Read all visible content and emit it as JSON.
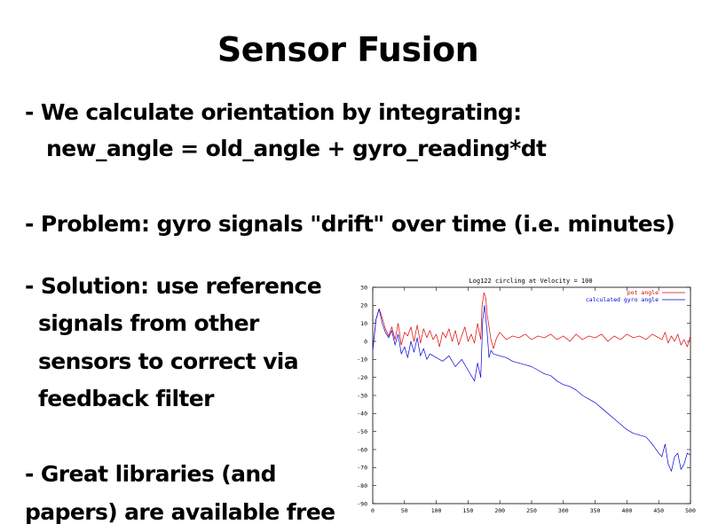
{
  "slide": {
    "title": "Sensor Fusion",
    "bullet1_line1": "- We calculate orientation by integrating:",
    "bullet1_line2": "new_angle = old_angle + gyro_reading*dt",
    "bullet2": "- Problem: gyro signals \"drift\" over time (i.e. minutes)",
    "bullet3_lines": [
      "- Solution: use reference",
      "signals from other",
      "sensors to correct via",
      "feedback filter"
    ],
    "bullet4_lines": [
      "- Great libraries (and",
      "papers) are available free"
    ]
  },
  "chart_data": {
    "type": "line",
    "title": "Log122  circling at Velocity = 100",
    "xlabel": "",
    "ylabel": "",
    "xlim": [
      0,
      500
    ],
    "ylim": [
      -90,
      30
    ],
    "x_ticks": [
      0,
      50,
      100,
      150,
      200,
      250,
      300,
      350,
      400,
      450,
      500
    ],
    "y_ticks": [
      30,
      20,
      10,
      0,
      -10,
      -20,
      -30,
      -40,
      -50,
      -60,
      -70,
      -80,
      -90
    ],
    "grid": false,
    "legend_position": "top-right",
    "series": [
      {
        "name": "pot angle",
        "color": "#e00000",
        "x": [
          0,
          5,
          10,
          15,
          20,
          25,
          30,
          35,
          40,
          45,
          50,
          55,
          60,
          65,
          70,
          75,
          80,
          85,
          90,
          95,
          100,
          105,
          110,
          115,
          120,
          125,
          130,
          135,
          140,
          145,
          150,
          155,
          160,
          165,
          170,
          172,
          175,
          178,
          180,
          183,
          186,
          190,
          195,
          200,
          210,
          220,
          230,
          240,
          250,
          260,
          270,
          280,
          290,
          300,
          310,
          320,
          330,
          340,
          350,
          360,
          370,
          380,
          390,
          400,
          410,
          420,
          430,
          440,
          450,
          455,
          460,
          465,
          470,
          475,
          480,
          485,
          490,
          495,
          500
        ],
        "values": [
          -5,
          12,
          18,
          13,
          7,
          3,
          8,
          1,
          10,
          -2,
          5,
          3,
          8,
          0,
          9,
          -1,
          7,
          2,
          6,
          1,
          4,
          -3,
          5,
          2,
          7,
          0,
          6,
          -2,
          3,
          8,
          0,
          4,
          -1,
          10,
          1,
          20,
          27,
          24,
          15,
          8,
          1,
          -4,
          2,
          5,
          1,
          3,
          2,
          4,
          1,
          3,
          2,
          4,
          1,
          3,
          0,
          4,
          1,
          3,
          2,
          4,
          0,
          3,
          1,
          4,
          2,
          3,
          1,
          4,
          2,
          1,
          5,
          -1,
          3,
          0,
          4,
          -2,
          1,
          -3,
          3
        ]
      },
      {
        "name": "calculated gyro angle",
        "color": "#0000dd",
        "x": [
          0,
          5,
          10,
          15,
          20,
          25,
          30,
          35,
          40,
          45,
          50,
          55,
          60,
          65,
          70,
          75,
          80,
          85,
          90,
          100,
          110,
          120,
          130,
          140,
          150,
          160,
          165,
          170,
          173,
          176,
          180,
          183,
          186,
          190,
          200,
          210,
          220,
          230,
          240,
          250,
          260,
          270,
          280,
          290,
          300,
          310,
          320,
          330,
          340,
          350,
          360,
          370,
          380,
          390,
          400,
          410,
          420,
          430,
          440,
          450,
          455,
          460,
          465,
          470,
          475,
          480,
          485,
          490,
          495,
          500
        ],
        "values": [
          -5,
          12,
          18,
          10,
          5,
          2,
          6,
          -2,
          4,
          -7,
          -3,
          -9,
          0,
          -6,
          2,
          -8,
          -4,
          -10,
          -7,
          -9,
          -11,
          -8,
          -14,
          -10,
          -16,
          -22,
          -12,
          -20,
          12,
          20,
          5,
          -9,
          -5,
          -7,
          -8,
          -9,
          -11,
          -12,
          -13,
          -14,
          -16,
          -18,
          -19,
          -22,
          -24,
          -25,
          -27,
          -30,
          -32,
          -34,
          -37,
          -40,
          -43,
          -46,
          -49,
          -51,
          -52,
          -53,
          -57,
          -62,
          -64,
          -57,
          -68,
          -72,
          -64,
          -62,
          -71,
          -68,
          -62,
          -63
        ]
      }
    ]
  }
}
